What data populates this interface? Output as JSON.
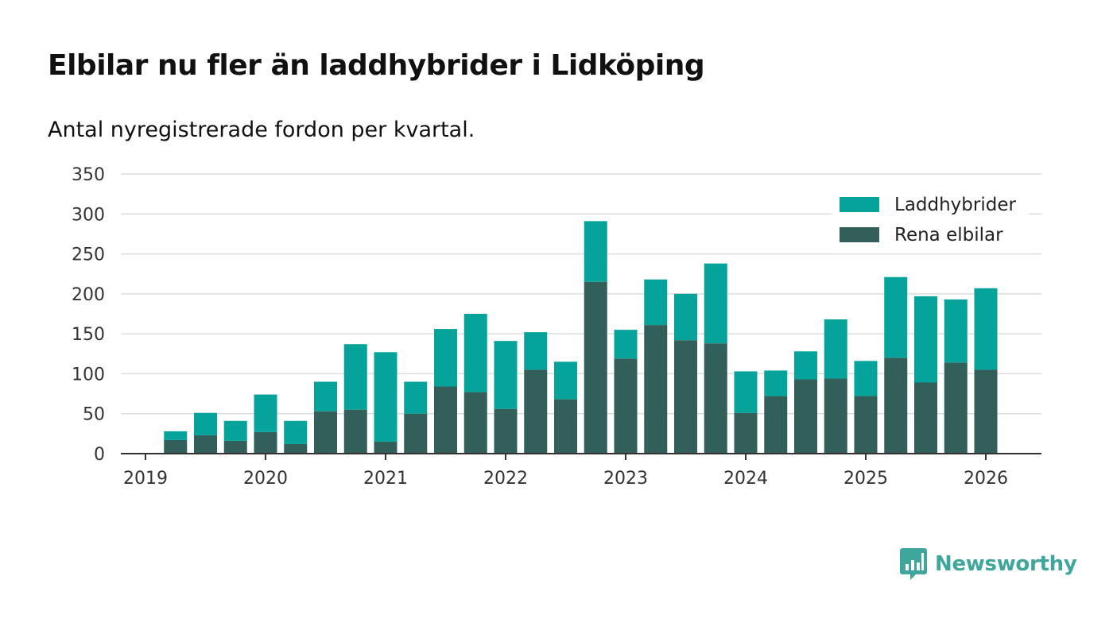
{
  "title": "Elbilar nu fler än laddhybrider i Lidköping",
  "subtitle": "Antal nyregistrerade fordon per kvartal.",
  "brand": {
    "name": "Newsworthy",
    "icon": "newsworthy-logo-icon",
    "color": "#3fa69c"
  },
  "chart_data": {
    "type": "bar",
    "stacked": true,
    "title": "Elbilar nu fler än laddhybrider i Lidköping",
    "subtitle": "Antal nyregistrerade fordon per kvartal.",
    "xlabel": "",
    "ylabel": "",
    "ylim": [
      0,
      350
    ],
    "yticks": [
      0,
      50,
      100,
      150,
      200,
      250,
      300,
      350
    ],
    "xticks": [
      "2019",
      "2020",
      "2021",
      "2022",
      "2023",
      "2024",
      "2025",
      "2026"
    ],
    "grid": true,
    "legend_position": "top-right",
    "categories": [
      "2019 Q2",
      "2019 Q3",
      "2019 Q4",
      "2020 Q1",
      "2020 Q2",
      "2020 Q3",
      "2020 Q4",
      "2021 Q1",
      "2021 Q2",
      "2021 Q3",
      "2021 Q4",
      "2022 Q1",
      "2022 Q2",
      "2022 Q3",
      "2022 Q4",
      "2023 Q1",
      "2023 Q2",
      "2023 Q3",
      "2023 Q4",
      "2024 Q1",
      "2024 Q2",
      "2024 Q3",
      "2024 Q4",
      "2025 Q1",
      "2025 Q2",
      "2025 Q3",
      "2025 Q4",
      "2026 Q1"
    ],
    "series": [
      {
        "name": "Rena elbilar",
        "color": "#335f5b",
        "values": [
          17,
          23,
          16,
          27,
          12,
          53,
          55,
          15,
          50,
          84,
          77,
          56,
          105,
          68,
          215,
          119,
          161,
          142,
          138,
          51,
          72,
          93,
          94,
          72,
          120,
          89,
          114,
          105
        ]
      },
      {
        "name": "Laddhybrider",
        "color": "#05a39a",
        "values": [
          11,
          28,
          25,
          47,
          29,
          37,
          82,
          112,
          40,
          72,
          98,
          85,
          47,
          47,
          76,
          36,
          57,
          58,
          100,
          52,
          32,
          35,
          74,
          44,
          101,
          108,
          79,
          102
        ]
      }
    ]
  }
}
